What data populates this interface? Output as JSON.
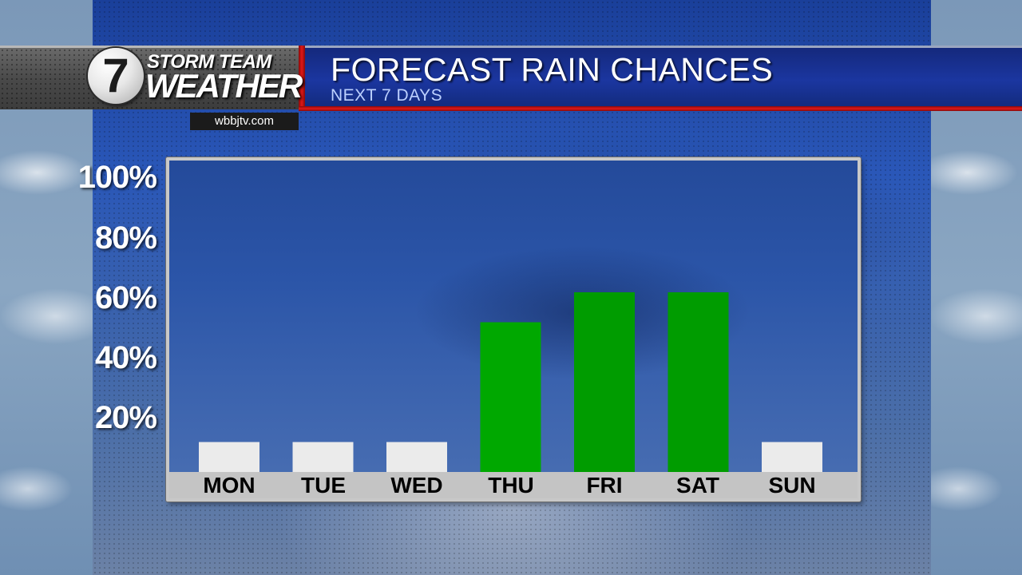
{
  "header": {
    "brand_line1": "STORM TEAM",
    "brand_line2": "WEATHER",
    "logo_number": "7",
    "website": "wbbjtv.com"
  },
  "chart_data": {
    "type": "bar",
    "title": "FORECAST RAIN CHANCES",
    "subtitle": "NEXT 7 DAYS",
    "categories": [
      "MON",
      "TUE",
      "WED",
      "THU",
      "FRI",
      "SAT",
      "SUN"
    ],
    "values": [
      10,
      10,
      10,
      50,
      60,
      60,
      10
    ],
    "ylim": [
      0,
      100
    ],
    "yticks": [
      "100%",
      "80%",
      "60%",
      "40%",
      "20%"
    ],
    "xlabel": "",
    "ylabel": "",
    "bar_colors": [
      "#ebebeb",
      "#ebebeb",
      "#ebebeb",
      "#00a800",
      "#009c00",
      "#009c00",
      "#ebebeb"
    ],
    "grid": false,
    "legend": "none"
  },
  "colors": {
    "header_blue": "#1b36a0",
    "accent_red": "#e01818",
    "bar_green": "#00a800",
    "bar_white": "#ebebeb"
  }
}
